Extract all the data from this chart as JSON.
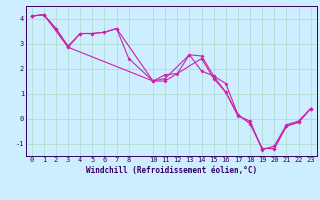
{
  "xlabel": "Windchill (Refroidissement éolien,°C)",
  "ylabel": "",
  "background_color": "#cceeff",
  "grid_color": "#b0ddd0",
  "line_color": "#cc22aa",
  "xlim": [
    -0.5,
    23.5
  ],
  "ylim": [
    -1.5,
    4.5
  ],
  "xticks": [
    0,
    1,
    2,
    3,
    4,
    5,
    6,
    7,
    8,
    10,
    11,
    12,
    13,
    14,
    15,
    16,
    17,
    18,
    19,
    20,
    21,
    22,
    23
  ],
  "yticks": [
    -1,
    0,
    1,
    2,
    3,
    4
  ],
  "series1_x": [
    0,
    1,
    2,
    3,
    4,
    5,
    6,
    7,
    10,
    11,
    12,
    13,
    14,
    15,
    16,
    17,
    18,
    19,
    20,
    21,
    22,
    23
  ],
  "series1_y": [
    4.1,
    4.15,
    3.6,
    2.9,
    3.4,
    3.4,
    3.45,
    3.6,
    1.5,
    1.75,
    1.8,
    2.55,
    1.9,
    1.7,
    1.05,
    0.15,
    -0.2,
    -1.2,
    -1.2,
    -0.3,
    -0.15,
    0.4
  ],
  "series2_x": [
    0,
    1,
    3,
    4,
    5,
    6,
    7,
    8,
    10,
    11,
    13,
    14,
    15,
    16,
    17,
    18,
    19,
    20,
    21,
    22,
    23
  ],
  "series2_y": [
    4.1,
    4.15,
    2.85,
    3.4,
    3.4,
    3.45,
    3.6,
    2.4,
    1.5,
    1.6,
    2.55,
    2.5,
    1.7,
    1.4,
    0.15,
    -0.2,
    -1.2,
    -1.2,
    -0.3,
    -0.15,
    0.4
  ],
  "series3_x": [
    0,
    1,
    2,
    3,
    10,
    11,
    14,
    15,
    16,
    17,
    18,
    19,
    20,
    21,
    22,
    23
  ],
  "series3_y": [
    4.1,
    4.15,
    3.6,
    2.85,
    1.5,
    1.5,
    2.4,
    1.6,
    1.05,
    0.1,
    -0.1,
    -1.25,
    -1.1,
    -0.25,
    -0.1,
    0.4
  ],
  "tick_fontsize": 5.0,
  "xlabel_fontsize": 5.5,
  "tick_color": "#330066",
  "spine_color": "#330066"
}
